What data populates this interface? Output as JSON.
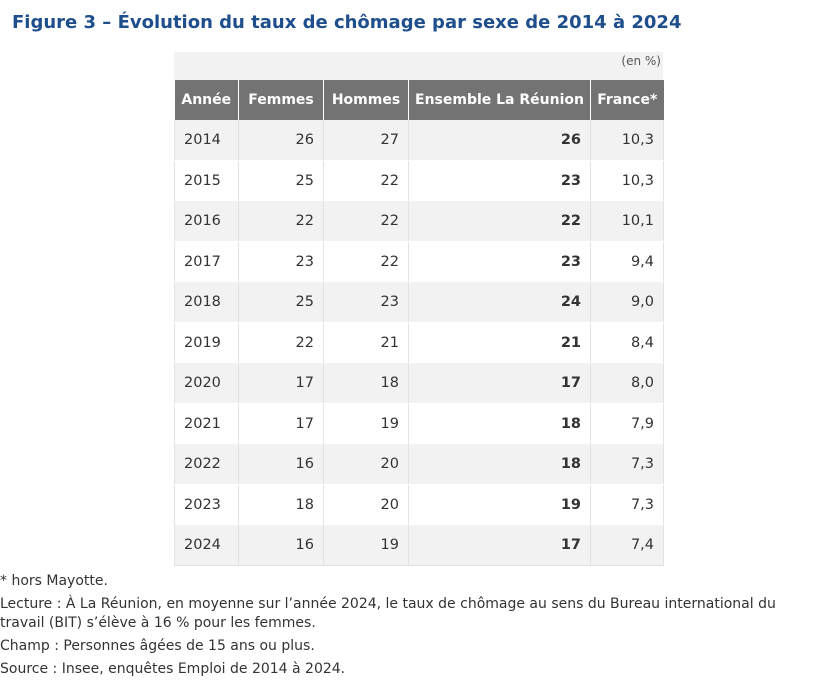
{
  "title": "Figure 3 – Évolution du taux de chômage par sexe de 2014 à 2024",
  "unit": "(en %)",
  "columns": [
    "Année",
    "Femmes",
    "Hommes",
    "Ensemble La Réunion",
    "France*"
  ],
  "rows": [
    [
      "2014",
      "26",
      "27",
      "26",
      "10,3"
    ],
    [
      "2015",
      "25",
      "22",
      "23",
      "10,3"
    ],
    [
      "2016",
      "22",
      "22",
      "22",
      "10,1"
    ],
    [
      "2017",
      "23",
      "22",
      "23",
      "9,4"
    ],
    [
      "2018",
      "25",
      "23",
      "24",
      "9,0"
    ],
    [
      "2019",
      "22",
      "21",
      "21",
      "8,4"
    ],
    [
      "2020",
      "17",
      "18",
      "17",
      "8,0"
    ],
    [
      "2021",
      "17",
      "19",
      "18",
      "7,9"
    ],
    [
      "2022",
      "16",
      "20",
      "18",
      "7,3"
    ],
    [
      "2023",
      "18",
      "20",
      "19",
      "7,3"
    ],
    [
      "2024",
      "16",
      "19",
      "17",
      "7,4"
    ]
  ],
  "notes": {
    "footnote": "* hors Mayotte.",
    "lecture": "Lecture : À La Réunion, en moyenne sur l’année 2024, le taux de chômage au sens du Bureau international du travail (BIT) s’élève à 16 % pour les femmes.",
    "champ": "Champ : Personnes âgées de 15 ans ou plus.",
    "source": "Source : Insee, enquêtes Emploi de 2014 à 2024."
  }
}
